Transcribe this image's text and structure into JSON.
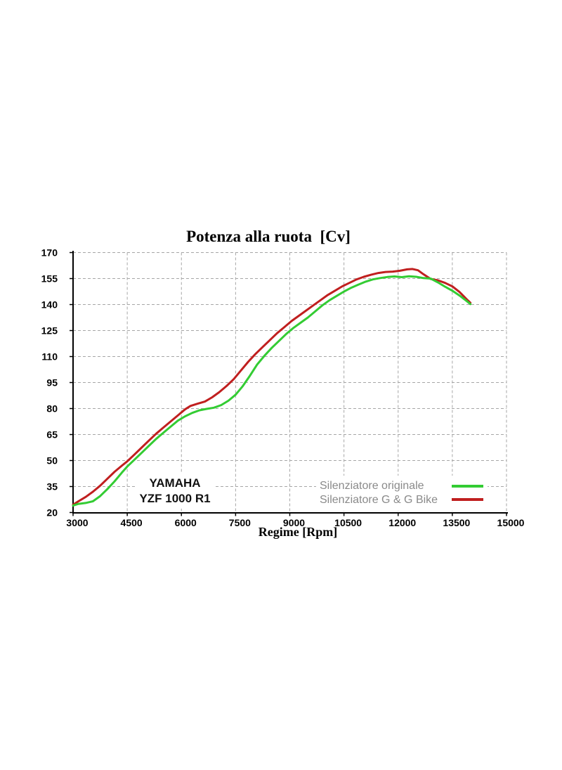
{
  "chart_data": {
    "type": "line",
    "title": "Potenza alla ruota  [Cv]",
    "xlabel": "Regime [Rpm]",
    "x_axis": {
      "min": 3000,
      "max": 15000,
      "ticks": [
        3000,
        4500,
        6000,
        7500,
        9000,
        10500,
        12000,
        13500,
        15000
      ],
      "tick_labels": [
        "3000",
        "4500",
        "6000",
        "7500",
        "9000",
        "10500",
        "12000",
        "13500",
        "15000"
      ]
    },
    "y_axis": {
      "min": 20,
      "max": 170,
      "ticks": [
        20,
        35,
        50,
        65,
        80,
        95,
        110,
        125,
        140,
        155,
        170
      ],
      "tick_labels": [
        "20",
        "35",
        "50",
        "65",
        "80",
        "95",
        "110",
        "125",
        "140",
        "155",
        "170"
      ]
    },
    "grid": {
      "dashed": true,
      "color": "#a6a6a6"
    },
    "axis_color": "#000000",
    "annotation": {
      "line1": "YAMAHA",
      "line2": "YZF 1000 R1"
    },
    "legend": {
      "position": "inside-bottom-right",
      "entries": [
        {
          "label": "Silenziatore originale",
          "color": "#33cc33"
        },
        {
          "label": "Silenziatore G & G Bike",
          "color": "#c01f1f"
        }
      ]
    },
    "series": [
      {
        "name": "Silenziatore originale",
        "color": "#33cc33",
        "points": [
          [
            3000,
            24
          ],
          [
            3150,
            25
          ],
          [
            3350,
            25.5
          ],
          [
            3550,
            26.5
          ],
          [
            3750,
            29.5
          ],
          [
            3950,
            33.5
          ],
          [
            4150,
            38
          ],
          [
            4350,
            43
          ],
          [
            4500,
            46.5
          ],
          [
            4700,
            50.5
          ],
          [
            4900,
            54.5
          ],
          [
            5100,
            58.5
          ],
          [
            5300,
            62.5
          ],
          [
            5500,
            66
          ],
          [
            5700,
            69.5
          ],
          [
            5900,
            73
          ],
          [
            6100,
            75.5
          ],
          [
            6300,
            77.5
          ],
          [
            6500,
            79
          ],
          [
            6700,
            79.8
          ],
          [
            6900,
            80.5
          ],
          [
            7100,
            82
          ],
          [
            7300,
            84.5
          ],
          [
            7500,
            88
          ],
          [
            7700,
            93
          ],
          [
            7900,
            99
          ],
          [
            8100,
            105.5
          ],
          [
            8300,
            110.5
          ],
          [
            8500,
            115
          ],
          [
            8700,
            119
          ],
          [
            8900,
            123
          ],
          [
            9100,
            126.5
          ],
          [
            9300,
            129.5
          ],
          [
            9500,
            132.5
          ],
          [
            9700,
            136
          ],
          [
            9900,
            139.5
          ],
          [
            10100,
            142.5
          ],
          [
            10300,
            145
          ],
          [
            10500,
            147.5
          ],
          [
            10700,
            149.7
          ],
          [
            10900,
            151.5
          ],
          [
            11100,
            153.2
          ],
          [
            11300,
            154.5
          ],
          [
            11500,
            155.3
          ],
          [
            11700,
            155.9
          ],
          [
            11900,
            156.2
          ],
          [
            12100,
            155.8
          ],
          [
            12300,
            156.3
          ],
          [
            12500,
            156
          ],
          [
            12700,
            155.3
          ],
          [
            12900,
            155
          ],
          [
            13100,
            152.8
          ],
          [
            13300,
            150.3
          ],
          [
            13500,
            148
          ],
          [
            13700,
            145.2
          ],
          [
            13900,
            142
          ],
          [
            14000,
            140.3
          ]
        ]
      },
      {
        "name": "Silenziatore G & G Bike",
        "color": "#c01f1f",
        "points": [
          [
            3000,
            24.5
          ],
          [
            3150,
            26.5
          ],
          [
            3350,
            29
          ],
          [
            3550,
            32
          ],
          [
            3750,
            35.5
          ],
          [
            3950,
            39.5
          ],
          [
            4150,
            43.5
          ],
          [
            4350,
            47
          ],
          [
            4500,
            49.5
          ],
          [
            4700,
            53.5
          ],
          [
            4900,
            57.5
          ],
          [
            5100,
            61.5
          ],
          [
            5300,
            65.5
          ],
          [
            5500,
            69
          ],
          [
            5700,
            72.5
          ],
          [
            5900,
            76
          ],
          [
            6100,
            79.5
          ],
          [
            6250,
            81.5
          ],
          [
            6450,
            82.8
          ],
          [
            6650,
            84
          ],
          [
            6850,
            86.5
          ],
          [
            7050,
            89.5
          ],
          [
            7250,
            93
          ],
          [
            7450,
            97
          ],
          [
            7650,
            102
          ],
          [
            7850,
            107
          ],
          [
            8050,
            111.5
          ],
          [
            8250,
            115.5
          ],
          [
            8450,
            119.5
          ],
          [
            8650,
            123.5
          ],
          [
            8850,
            127
          ],
          [
            9050,
            130.5
          ],
          [
            9250,
            133.5
          ],
          [
            9450,
            136.5
          ],
          [
            9650,
            139.5
          ],
          [
            9850,
            142.5
          ],
          [
            10050,
            145.5
          ],
          [
            10250,
            148
          ],
          [
            10450,
            150.5
          ],
          [
            10650,
            152.5
          ],
          [
            10850,
            154.5
          ],
          [
            11050,
            156
          ],
          [
            11250,
            157.2
          ],
          [
            11450,
            158.2
          ],
          [
            11650,
            158.8
          ],
          [
            11850,
            159
          ],
          [
            12050,
            159.5
          ],
          [
            12250,
            160.3
          ],
          [
            12400,
            160.5
          ],
          [
            12550,
            159.8
          ],
          [
            12700,
            157.5
          ],
          [
            12900,
            154.8
          ],
          [
            13100,
            154
          ],
          [
            13300,
            152.5
          ],
          [
            13500,
            150.5
          ],
          [
            13700,
            147.2
          ],
          [
            13900,
            143
          ],
          [
            14000,
            141
          ]
        ]
      }
    ]
  }
}
